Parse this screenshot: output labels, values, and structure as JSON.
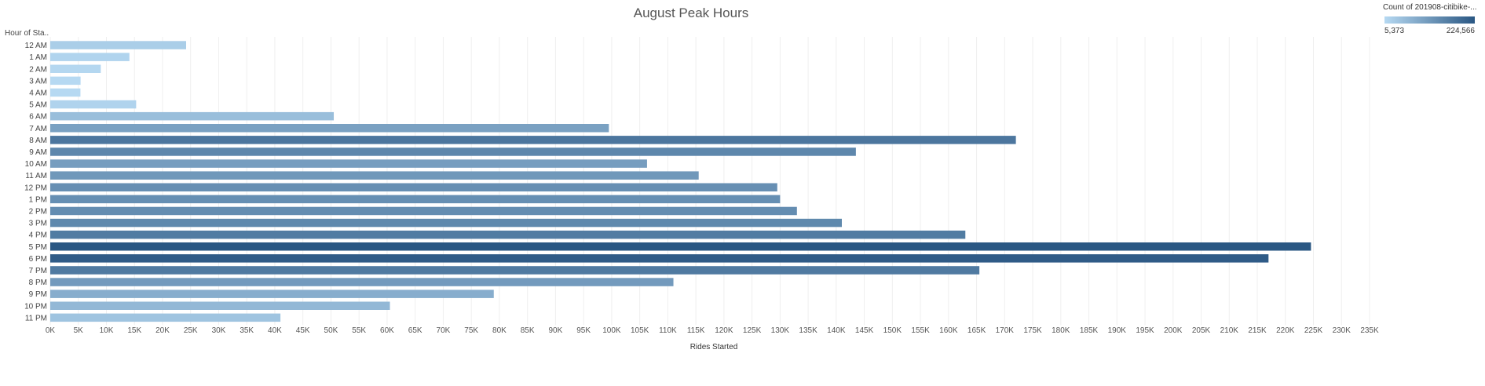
{
  "chart_data": {
    "type": "bar",
    "orientation": "horizontal",
    "title": "August Peak Hours",
    "ylabel": "Hour of Sta..",
    "xlabel": "Rides Started",
    "categories": [
      "12 AM",
      "1 AM",
      "2 AM",
      "3 AM",
      "4 AM",
      "5 AM",
      "6 AM",
      "7 AM",
      "8 AM",
      "9 AM",
      "10 AM",
      "11 AM",
      "12 PM",
      "1 PM",
      "2 PM",
      "3 PM",
      "4 PM",
      "5 PM",
      "6 PM",
      "7 PM",
      "8 PM",
      "9 PM",
      "10 PM",
      "11 PM"
    ],
    "values": [
      24200,
      14100,
      9000,
      5400,
      5373,
      15300,
      50500,
      99500,
      172000,
      143500,
      106300,
      115500,
      129500,
      130000,
      133000,
      141000,
      163000,
      224566,
      217000,
      165500,
      111000,
      79000,
      60500,
      41000
    ],
    "xlim": [
      0,
      235000
    ],
    "xticks": [
      0,
      5000,
      10000,
      15000,
      20000,
      25000,
      30000,
      35000,
      40000,
      45000,
      50000,
      55000,
      60000,
      65000,
      70000,
      75000,
      80000,
      85000,
      90000,
      95000,
      100000,
      105000,
      110000,
      115000,
      120000,
      125000,
      130000,
      135000,
      140000,
      145000,
      150000,
      155000,
      160000,
      165000,
      170000,
      175000,
      180000,
      185000,
      190000,
      195000,
      200000,
      205000,
      210000,
      215000,
      220000,
      225000,
      230000,
      235000
    ],
    "xtick_labels": [
      "0K",
      "5K",
      "10K",
      "15K",
      "20K",
      "25K",
      "30K",
      "35K",
      "40K",
      "45K",
      "50K",
      "55K",
      "60K",
      "65K",
      "70K",
      "75K",
      "80K",
      "85K",
      "90K",
      "95K",
      "100K",
      "105K",
      "110K",
      "115K",
      "120K",
      "125K",
      "130K",
      "135K",
      "140K",
      "145K",
      "150K",
      "155K",
      "160K",
      "165K",
      "170K",
      "175K",
      "180K",
      "185K",
      "190K",
      "195K",
      "200K",
      "205K",
      "210K",
      "215K",
      "220K",
      "225K",
      "230K",
      "235K"
    ],
    "grid": "vertical",
    "legend": {
      "title": "Count of 201908-citibike-...",
      "min_label": "5,373",
      "max_label": "224,566",
      "min_value": 5373,
      "max_value": 224566,
      "color_low": "#b6d9f2",
      "color_high": "#2a5783",
      "placement": "top-right"
    }
  }
}
